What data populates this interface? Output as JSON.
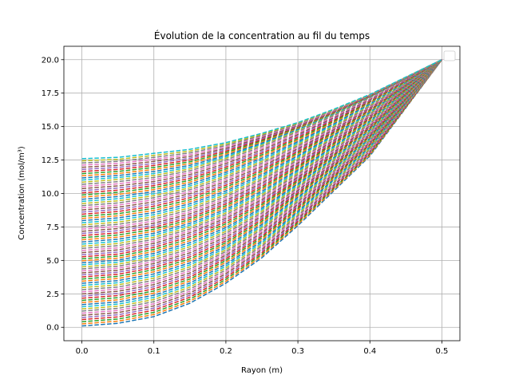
{
  "chart_data": {
    "type": "line",
    "title": "Évolution de la concentration au fil du temps",
    "xlabel": "Rayon (m)",
    "ylabel": "Concentration (mol/m³)",
    "xlim": [
      -0.025,
      0.525
    ],
    "ylim": [
      -1.0,
      21.0
    ],
    "xticks": [
      0.0,
      0.1,
      0.2,
      0.3,
      0.4,
      0.5
    ],
    "xtick_labels": [
      "0.0",
      "0.1",
      "0.2",
      "0.3",
      "0.4",
      "0.5"
    ],
    "yticks": [
      0.0,
      2.5,
      5.0,
      7.5,
      10.0,
      12.5,
      15.0,
      17.5,
      20.0
    ],
    "ytick_labels": [
      "0.0",
      "2.5",
      "5.0",
      "7.5",
      "10.0",
      "12.5",
      "15.0",
      "17.5",
      "20.0"
    ],
    "grid": true,
    "legend": "top-right, empty",
    "line_style": "dashed",
    "series_colors": [
      "#1f77b4",
      "#ff7f0e",
      "#2ca02c",
      "#d62728",
      "#9467bd",
      "#8c564b",
      "#e377c2",
      "#7f7f7f",
      "#bcbd22",
      "#17becf"
    ],
    "x": [
      0.0,
      0.05,
      0.1,
      0.15,
      0.2,
      0.25,
      0.3,
      0.35,
      0.4,
      0.45,
      0.5
    ],
    "series": [
      {
        "values": [
          0.1,
          0.3,
          0.8,
          1.8,
          3.3,
          5.2,
          7.6,
          10.2,
          12.8,
          16.4,
          20.0
        ]
      },
      {
        "values": [
          1.9,
          2.1,
          2.6,
          3.5,
          4.9,
          6.6,
          8.8,
          11.2,
          13.6,
          16.8,
          20.0
        ]
      },
      {
        "values": [
          3.7,
          3.9,
          4.4,
          5.2,
          6.4,
          8.0,
          10.0,
          12.1,
          14.3,
          17.1,
          20.0
        ]
      },
      {
        "values": [
          5.4,
          5.6,
          6.1,
          6.9,
          8.0,
          9.4,
          11.1,
          13.0,
          15.0,
          17.5,
          20.0
        ]
      },
      {
        "values": [
          7.2,
          7.4,
          7.8,
          8.5,
          9.5,
          10.8,
          12.3,
          14.0,
          15.8,
          17.9,
          20.0
        ]
      },
      {
        "values": [
          9.0,
          9.2,
          9.6,
          10.2,
          11.1,
          12.2,
          13.5,
          14.9,
          16.5,
          18.2,
          20.0
        ]
      },
      {
        "values": [
          10.8,
          11.0,
          11.3,
          11.8,
          12.6,
          13.6,
          14.7,
          15.9,
          17.2,
          18.6,
          20.0
        ]
      },
      {
        "values": [
          12.6,
          12.7,
          13.0,
          13.3,
          13.8,
          14.5,
          15.3,
          16.3,
          17.4,
          18.7,
          20.0
        ]
      }
    ]
  }
}
